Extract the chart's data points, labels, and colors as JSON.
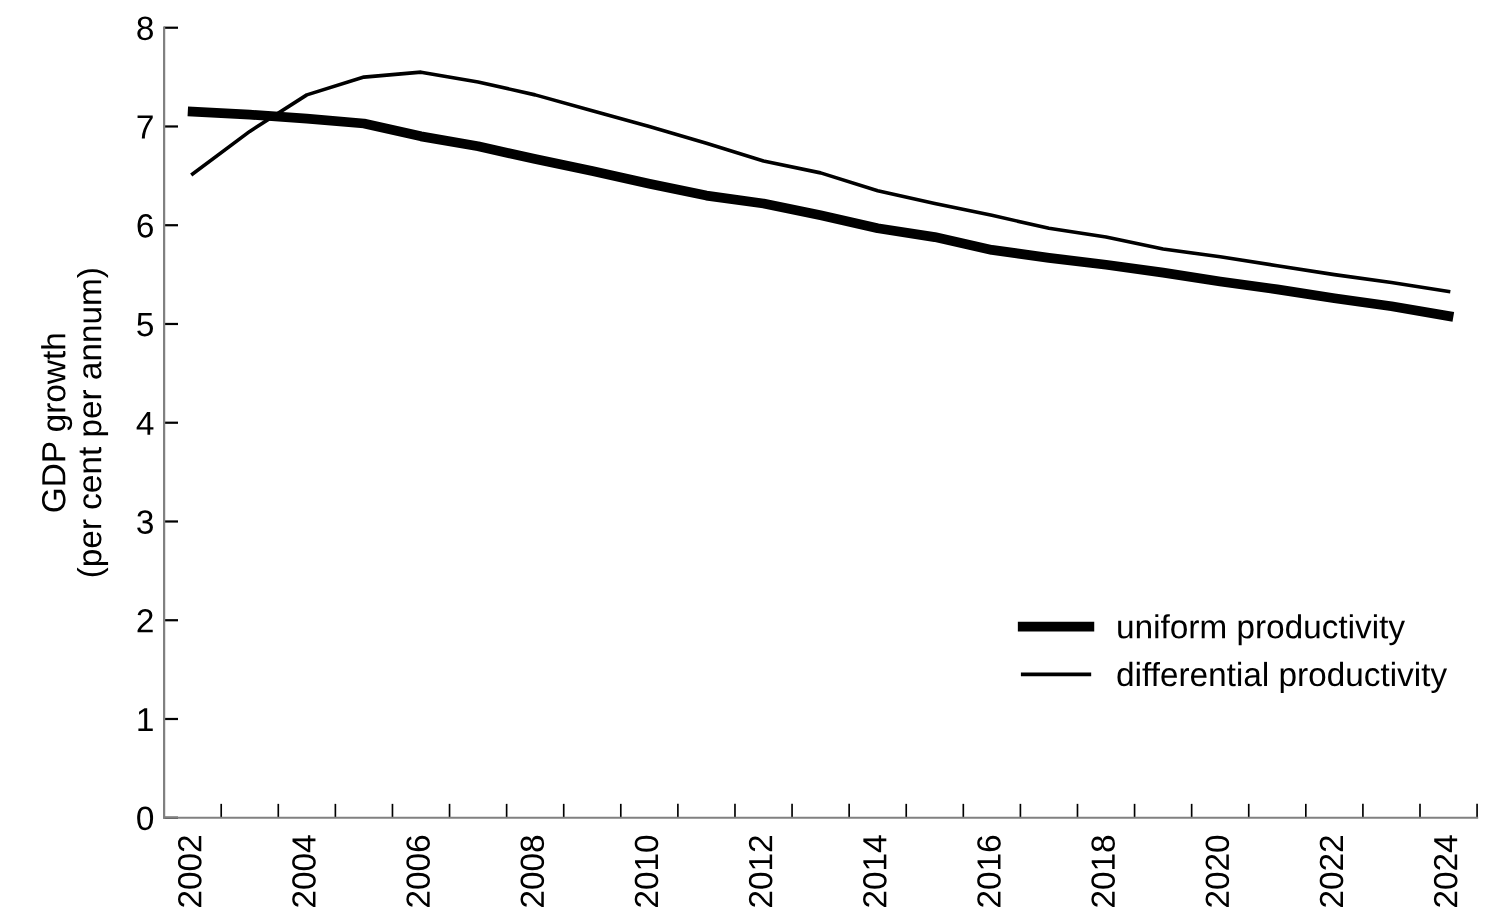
{
  "chart_data": {
    "type": "line",
    "ylabel": "GDP growth\n(per cent per annum)",
    "categories": [
      "2002",
      null,
      "2004",
      null,
      "2006",
      null,
      "2008",
      null,
      "2010",
      null,
      "2012",
      null,
      "2014",
      null,
      "2016",
      null,
      "2018",
      null,
      "2020",
      null,
      "2022",
      null,
      "2024"
    ],
    "series": [
      {
        "name": "uniform productivity",
        "color": "#000000",
        "values": [
          7.15,
          7.12,
          7.08,
          7.03,
          6.9,
          6.8,
          6.67,
          6.55,
          6.42,
          6.3,
          6.22,
          6.1,
          5.97,
          5.88,
          5.75,
          5.67,
          5.6,
          5.52,
          5.43,
          5.35,
          5.26,
          5.18,
          5.08
        ]
      },
      {
        "name": "differential productivity",
        "color": "#000000",
        "values": [
          6.52,
          6.95,
          7.32,
          7.5,
          7.55,
          7.45,
          7.32,
          7.16,
          7.0,
          6.83,
          6.65,
          6.53,
          6.35,
          6.22,
          6.1,
          5.97,
          5.88,
          5.76,
          5.68,
          5.59,
          5.5,
          5.42,
          5.33
        ]
      }
    ],
    "ylim": [
      0,
      8
    ],
    "yticks": [
      0,
      1,
      2,
      3,
      4,
      5,
      6,
      7,
      8
    ],
    "grid": false,
    "legend": "bottom right",
    "marker": "none",
    "line_style": "solid"
  }
}
